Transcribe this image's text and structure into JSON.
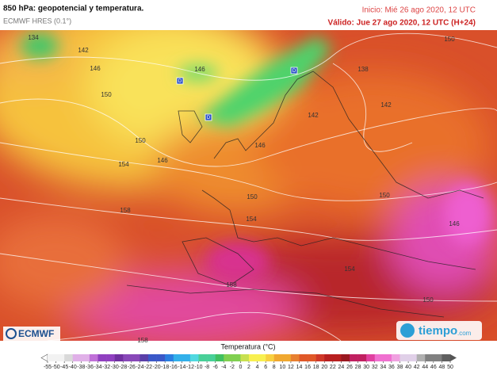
{
  "header": {
    "title": "850 hPa: geopotencial y temperatura.",
    "model": "ECMWF HRES (0.1°)",
    "init": "Inicio: Mié 26 ago 2020, 12 UTC",
    "valid": "Válido: Jue 27 ago 2020, 12 UTC (H+24)"
  },
  "map": {
    "contour_labels": [
      "134",
      "142",
      "146",
      "150",
      "150",
      "154",
      "146",
      "158",
      "146",
      "146",
      "142",
      "138",
      "142",
      "150",
      "150",
      "154",
      "150",
      "146",
      "158",
      "154",
      "150",
      "158"
    ],
    "pressure_markers": [
      "D",
      "D",
      "D"
    ]
  },
  "logos": {
    "left": "ECMWF",
    "right": "tiempo",
    "right_suffix": ".com"
  },
  "colorbar": {
    "title": "Temperatura (°C)",
    "ticks": [
      -55,
      -50,
      -45,
      -40,
      -38,
      -36,
      -34,
      -32,
      -30,
      -28,
      -26,
      -24,
      -22,
      -20,
      -18,
      -16,
      -14,
      -12,
      -10,
      -8,
      -6,
      -4,
      -2,
      0,
      2,
      4,
      6,
      8,
      10,
      12,
      14,
      16,
      18,
      20,
      22,
      24,
      26,
      28,
      30,
      32,
      34,
      36,
      38,
      40,
      42,
      44,
      46,
      48,
      50
    ]
  }
}
